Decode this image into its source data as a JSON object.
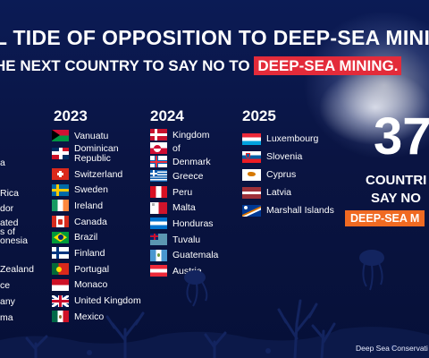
{
  "headline": "BAL TIDE OF OPPOSITION TO DEEP-SEA MINI",
  "subline": {
    "prefix": "HE NEXT COUNTRY TO SAY NO TO",
    "highlight": "DEEP-SEA MINING."
  },
  "partial_column": [
    "a",
    "Rica",
    "dor",
    "ated",
    "s of",
    "onesia",
    "Zealand",
    "ce",
    "any",
    "ma"
  ],
  "years": [
    {
      "year": "2023",
      "countries": [
        {
          "name": "Vanuatu",
          "flag": "vanuatu-flag-icon"
        },
        {
          "name": "Dominican Republic",
          "line1": "Dominican",
          "line2": "Republic",
          "flag": "dominican-republic-flag-icon"
        },
        {
          "name": "Switzerland",
          "flag": "switzerland-flag-icon"
        },
        {
          "name": "Sweden",
          "flag": "sweden-flag-icon"
        },
        {
          "name": "Ireland",
          "flag": "ireland-flag-icon"
        },
        {
          "name": "Canada",
          "flag": "canada-flag-icon"
        },
        {
          "name": "Brazil",
          "flag": "brazil-flag-icon"
        },
        {
          "name": "Finland",
          "flag": "finland-flag-icon"
        },
        {
          "name": "Portugal",
          "flag": "portugal-flag-icon"
        },
        {
          "name": "Monaco",
          "flag": "monaco-flag-icon"
        },
        {
          "name": "United Kingdom",
          "flag": "united-kingdom-flag-icon"
        },
        {
          "name": "Mexico",
          "flag": "mexico-flag-icon"
        }
      ]
    },
    {
      "year": "2024",
      "countries": [
        {
          "name": "Kingdom",
          "flag": "denmark-flag-icon"
        },
        {
          "name": "of",
          "flag": "greenland-flag-icon"
        },
        {
          "name": "Denmark",
          "flag": "faroe-islands-flag-icon"
        },
        {
          "name": "Greece",
          "flag": "greece-flag-icon"
        },
        {
          "name": "Peru",
          "flag": "peru-flag-icon"
        },
        {
          "name": "Malta",
          "flag": "malta-flag-icon"
        },
        {
          "name": "Honduras",
          "flag": "honduras-flag-icon"
        },
        {
          "name": "Tuvalu",
          "flag": "tuvalu-flag-icon"
        },
        {
          "name": "Guatemala",
          "flag": "guatemala-flag-icon"
        },
        {
          "name": "Austria",
          "flag": "austria-flag-icon"
        }
      ]
    },
    {
      "year": "2025",
      "countries": [
        {
          "name": "Luxembourg",
          "flag": "luxembourg-flag-icon"
        },
        {
          "name": "Slovenia",
          "flag": "slovenia-flag-icon"
        },
        {
          "name": "Cyprus",
          "flag": "cyprus-flag-icon"
        },
        {
          "name": "Latvia",
          "flag": "latvia-flag-icon"
        },
        {
          "name": "Marshall Islands",
          "flag": "marshall-islands-flag-icon"
        }
      ]
    }
  ],
  "total": {
    "number": "37",
    "label_line1": "COUNTRI",
    "label_line2": "SAY NO",
    "badge": "DEEP-SEA M"
  },
  "credit": "Deep Sea Conservati",
  "colors": {
    "background": "#0a1336",
    "highlight_red": "#e32b3a",
    "badge_orange": "#f06a22",
    "seabed": "#0d1a4a"
  }
}
